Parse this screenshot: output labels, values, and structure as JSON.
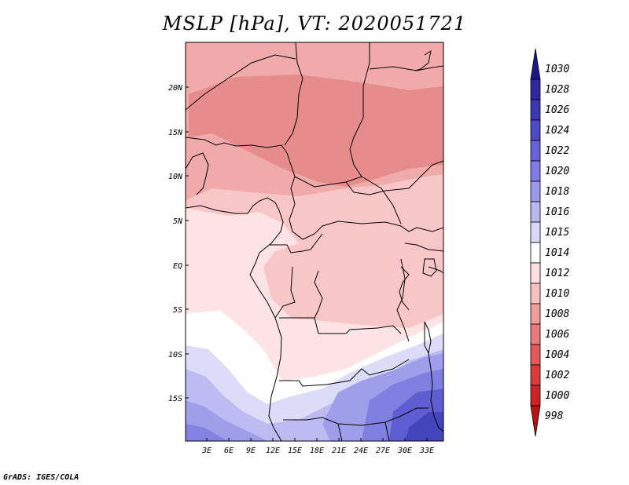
{
  "title": "MSLP [hPa], VT: 2020051721",
  "credit": "GrADS: IGES/COLA",
  "map": {
    "lat_labels": [
      "20N",
      "15N",
      "10N",
      "5N",
      "EQ",
      "5S",
      "10S",
      "15S"
    ],
    "lon_labels": [
      "3E",
      "6E",
      "9E",
      "12E",
      "15E",
      "18E",
      "21E",
      "24E",
      "27E",
      "30E",
      "33E"
    ]
  },
  "colorbar": {
    "labels": [
      "1030",
      "1028",
      "1026",
      "1024",
      "1022",
      "1020",
      "1018",
      "1016",
      "1015",
      "1014",
      "1012",
      "1010",
      "1008",
      "1006",
      "1004",
      "1002",
      "1000",
      "998"
    ],
    "colors": [
      "#1e1887",
      "#2c2a9e",
      "#3b39b0",
      "#4c4bc4",
      "#6464d6",
      "#7d7de2",
      "#9a9aea",
      "#b9b9f2",
      "#d8d8f8",
      "#ffffff",
      "#fde0e0",
      "#f8c0c0",
      "#ef9c9c",
      "#e77a7a",
      "#e25a5a",
      "#d93c3c",
      "#cc2424",
      "#b81414"
    ]
  }
}
